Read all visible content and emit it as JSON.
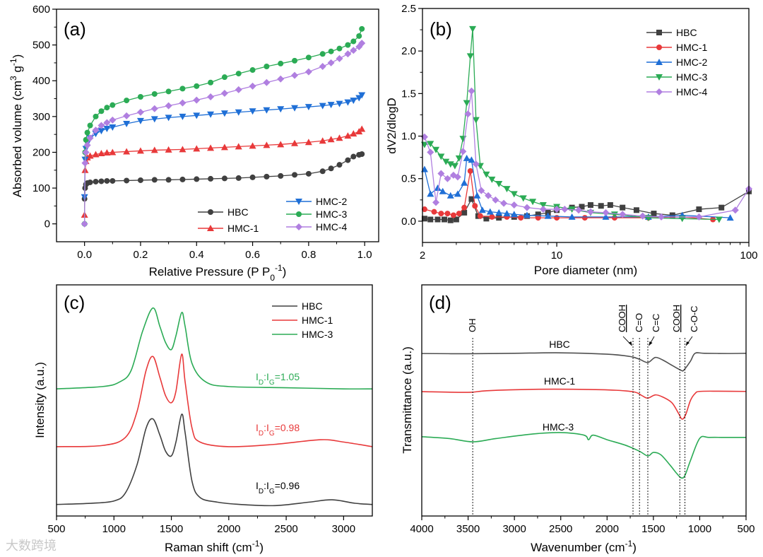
{
  "watermark": "大数跨境",
  "chart_data": [
    {
      "panel": "(a)",
      "type": "scatter",
      "xlabel_parts": [
        {
          "t": "Relative Pressure (P P"
        },
        {
          "t": "0",
          "s": "sub"
        },
        {
          "t": "-1",
          "s": "sup"
        },
        {
          "t": ")"
        }
      ],
      "ylabel_parts": [
        {
          "t": "Absorbed volume (cm"
        },
        {
          "t": "3",
          "s": "sup"
        },
        {
          "t": " g"
        },
        {
          "t": "-1",
          "s": "sup"
        },
        {
          "t": ")"
        }
      ],
      "xlim": [
        -0.1,
        1.05
      ],
      "ylim": [
        -50,
        600
      ],
      "xticks": [
        0,
        0.2,
        0.4,
        0.6,
        0.8,
        1.0
      ],
      "xtick_labels": [
        "0.0",
        "0.2",
        "0.4",
        "0.6",
        "0.8",
        "1.0"
      ],
      "yticks": [
        0,
        100,
        200,
        300,
        400,
        500,
        600
      ],
      "ytick_labels": [
        "0",
        "100",
        "200",
        "300",
        "400",
        "500",
        "600"
      ],
      "legend_position": "bottom-right",
      "x": [
        0,
        0.002,
        0.005,
        0.01,
        0.02,
        0.04,
        0.06,
        0.08,
        0.1,
        0.15,
        0.2,
        0.25,
        0.3,
        0.35,
        0.4,
        0.45,
        0.5,
        0.55,
        0.6,
        0.65,
        0.7,
        0.75,
        0.8,
        0.85,
        0.88,
        0.91,
        0.94,
        0.96,
        0.98,
        0.99
      ],
      "series": [
        {
          "name": "HBC",
          "color": "#404040",
          "marker": "circle",
          "values": [
            70,
            100,
            110,
            114,
            116,
            118,
            119,
            120,
            120,
            121,
            122,
            123,
            123,
            124,
            125,
            126,
            127,
            128,
            130,
            132,
            134,
            137,
            140,
            147,
            155,
            165,
            178,
            188,
            193,
            195
          ]
        },
        {
          "name": "HMC-1",
          "color": "#e8393a",
          "marker": "triangle-up",
          "values": [
            25,
            150,
            175,
            185,
            190,
            194,
            197,
            199,
            200,
            202,
            204,
            206,
            207,
            208,
            210,
            212,
            214,
            216,
            218,
            220,
            222,
            225,
            228,
            232,
            236,
            240,
            246,
            252,
            258,
            265
          ]
        },
        {
          "name": "HMC-2",
          "color": "#1f6fd6",
          "marker": "triangle-down",
          "values": [
            75,
            180,
            210,
            225,
            240,
            252,
            260,
            266,
            270,
            280,
            288,
            293,
            297,
            300,
            303,
            306,
            309,
            312,
            315,
            318,
            321,
            324,
            327,
            330,
            333,
            336,
            340,
            345,
            352,
            360
          ]
        },
        {
          "name": "HMC-3",
          "color": "#2bab55",
          "marker": "circle",
          "values": [
            0,
            200,
            235,
            255,
            275,
            300,
            315,
            325,
            332,
            345,
            355,
            363,
            370,
            378,
            385,
            395,
            410,
            420,
            430,
            440,
            448,
            456,
            465,
            475,
            482,
            490,
            500,
            510,
            525,
            545
          ]
        },
        {
          "name": "HMC-4",
          "color": "#b07fe0",
          "marker": "diamond",
          "values": [
            0,
            170,
            200,
            220,
            240,
            262,
            275,
            283,
            290,
            302,
            312,
            322,
            330,
            338,
            346,
            355,
            365,
            375,
            385,
            395,
            405,
            415,
            425,
            440,
            450,
            462,
            475,
            485,
            495,
            505
          ]
        }
      ]
    },
    {
      "panel": "(b)",
      "type": "line",
      "xscale": "log",
      "xlabel_parts": [
        {
          "t": "Pore diameter (nm)"
        }
      ],
      "ylabel_parts": [
        {
          "t": "dV2/dlogD"
        }
      ],
      "xlim": [
        2,
        100
      ],
      "ylim": [
        -0.25,
        2.5
      ],
      "xticks": [
        2,
        10,
        100
      ],
      "xtick_labels": [
        "2",
        "10",
        "100"
      ],
      "yticks": [
        0,
        0.5,
        1.0,
        1.5,
        2.0,
        2.5
      ],
      "ytick_labels": [
        "0.0",
        "0.5",
        "1.0",
        "1.5",
        "2.0",
        "2.5"
      ],
      "legend_position": "top-right",
      "series": [
        {
          "name": "HBC",
          "color": "#404040",
          "marker": "square",
          "x": [
            2.05,
            2.2,
            2.4,
            2.6,
            2.8,
            3.0,
            3.3,
            3.6,
            3.9,
            4.3,
            5,
            6,
            7,
            8,
            9,
            10,
            12,
            13.5,
            15,
            17,
            19,
            22,
            26,
            32,
            40,
            55,
            72,
            100
          ],
          "values": [
            0.03,
            0.02,
            0.02,
            0.02,
            0.01,
            0.02,
            0.1,
            0.26,
            0.06,
            0.03,
            0.04,
            0.05,
            0.06,
            0.08,
            0.1,
            0.13,
            0.16,
            0.17,
            0.19,
            0.18,
            0.19,
            0.16,
            0.13,
            0.09,
            0.07,
            0.14,
            0.16,
            0.35
          ]
        },
        {
          "name": "HMC-1",
          "color": "#e8393a",
          "marker": "circle",
          "x": [
            2.05,
            2.3,
            2.5,
            2.7,
            2.9,
            3.1,
            3.3,
            3.55,
            3.75,
            4.0,
            4.6,
            5.5,
            6.5,
            8,
            10,
            14,
            20,
            30,
            45,
            65
          ],
          "values": [
            0.14,
            0.11,
            0.09,
            0.09,
            0.07,
            0.09,
            0.16,
            0.59,
            0.18,
            0.06,
            0.05,
            0.05,
            0.04,
            0.04,
            0.04,
            0.04,
            0.04,
            0.04,
            0.05,
            0.02
          ]
        },
        {
          "name": "HMC-2",
          "color": "#1f6fd6",
          "marker": "triangle-up",
          "x": [
            2.05,
            2.2,
            2.4,
            2.55,
            2.8,
            3.05,
            3.3,
            3.4,
            3.6,
            3.85,
            4.1,
            4.5,
            5,
            5.5,
            6,
            7,
            9,
            12,
            18,
            30,
            45,
            80
          ],
          "values": [
            0.61,
            0.32,
            0.39,
            0.35,
            0.3,
            0.32,
            0.45,
            0.74,
            0.72,
            0.3,
            0.13,
            0.11,
            0.1,
            0.09,
            0.08,
            0.07,
            0.06,
            0.05,
            0.05,
            0.05,
            0.07,
            0.04
          ]
        },
        {
          "name": "HMC-3",
          "color": "#2bab55",
          "marker": "triangle-down",
          "x": [
            2.05,
            2.2,
            2.35,
            2.5,
            2.65,
            2.8,
            2.95,
            3.1,
            3.25,
            3.4,
            3.55,
            3.65,
            3.8,
            4.0,
            4.3,
            4.6,
            5,
            5.5,
            6,
            6.7,
            7.5,
            8.5,
            10,
            12,
            15,
            20,
            30,
            45,
            70
          ],
          "values": [
            0.9,
            0.91,
            0.84,
            0.76,
            0.7,
            0.67,
            0.65,
            0.74,
            0.97,
            1.39,
            1.94,
            2.26,
            1.19,
            0.65,
            0.55,
            0.49,
            0.44,
            0.38,
            0.32,
            0.27,
            0.23,
            0.19,
            0.17,
            0.14,
            0.1,
            0.08,
            0.04,
            0.03,
            0.02
          ]
        },
        {
          "name": "HMC-4",
          "color": "#b07fe0",
          "marker": "diamond",
          "x": [
            2.05,
            2.2,
            2.35,
            2.5,
            2.7,
            2.9,
            3.05,
            3.25,
            3.45,
            3.6,
            3.8,
            4.05,
            4.4,
            4.8,
            5.3,
            6,
            7,
            8.5,
            10,
            11,
            13,
            15,
            18,
            22,
            28,
            35,
            55,
            85,
            100
          ],
          "values": [
            0.99,
            0.81,
            0.22,
            0.56,
            0.5,
            0.54,
            0.52,
            0.82,
            1.26,
            1.53,
            0.67,
            0.36,
            0.3,
            0.25,
            0.21,
            0.19,
            0.16,
            0.14,
            0.14,
            0.14,
            0.13,
            0.11,
            0.1,
            0.08,
            0.06,
            0.05,
            0.05,
            0.13,
            0.38
          ]
        }
      ]
    },
    {
      "panel": "(c)",
      "type": "line",
      "xlabel_parts": [
        {
          "t": "Raman shift (cm"
        },
        {
          "t": "-1",
          "s": "sup"
        },
        {
          "t": ")"
        }
      ],
      "ylabel_parts": [
        {
          "t": "Intensity (a.u.)"
        }
      ],
      "xlim": [
        500,
        3250
      ],
      "ylim": [
        0,
        100
      ],
      "xticks": [
        500,
        1000,
        1500,
        2000,
        2500,
        3000
      ],
      "xtick_labels": [
        "500",
        "1000",
        "1500",
        "2000",
        "2500",
        "3000"
      ],
      "legend_position": "top-right",
      "series": [
        {
          "name": "HBC",
          "color": "#404040",
          "x": [
            500,
            800,
            1000,
            1100,
            1200,
            1280,
            1340,
            1400,
            1450,
            1500,
            1540,
            1590,
            1620,
            1680,
            1750,
            1900,
            2100,
            2400,
            2700,
            2900,
            3100,
            3250
          ],
          "values": [
            5,
            5.5,
            6.5,
            10,
            22,
            38,
            42,
            35,
            28,
            26,
            32,
            44,
            36,
            15,
            8,
            6,
            5,
            4.5,
            6,
            7,
            5.5,
            5
          ]
        },
        {
          "name": "HMC-1",
          "color": "#e8393a",
          "x": [
            500,
            900,
            1100,
            1200,
            1280,
            1340,
            1400,
            1450,
            1500,
            1540,
            1590,
            1620,
            1680,
            1750,
            2000,
            2400,
            2800,
            3000,
            3250
          ],
          "values": [
            30,
            30.5,
            34,
            45,
            63,
            69,
            60,
            52,
            49,
            54,
            70,
            58,
            38,
            32,
            30,
            31,
            33,
            32,
            30
          ]
        },
        {
          "name": "HMC-3",
          "color": "#2bab55",
          "x": [
            500,
            900,
            1050,
            1150,
            1250,
            1340,
            1400,
            1450,
            1500,
            1540,
            1590,
            1620,
            1680,
            1800,
            2000,
            2500,
            3000,
            3250
          ],
          "values": [
            55,
            56,
            58,
            63,
            80,
            90,
            82,
            75,
            72,
            78,
            88,
            82,
            66,
            58,
            56,
            55.5,
            55,
            55
          ]
        }
      ],
      "annotations": [
        {
          "series": "HMC-3",
          "color": "#2bab55",
          "parts": [
            {
              "t": "I"
            },
            {
              "t": "D",
              "s": "sub"
            },
            {
              "t": ":I"
            },
            {
              "t": "G",
              "s": "sub"
            },
            {
              "t": "=1.05"
            }
          ]
        },
        {
          "series": "HMC-1",
          "color": "#e8393a",
          "parts": [
            {
              "t": "I"
            },
            {
              "t": "D",
              "s": "sub"
            },
            {
              "t": ":I"
            },
            {
              "t": "G",
              "s": "sub"
            },
            {
              "t": "=0.98"
            }
          ]
        },
        {
          "series": "HBC",
          "color": "#000000",
          "parts": [
            {
              "t": "I"
            },
            {
              "t": "D",
              "s": "sub"
            },
            {
              "t": ":I"
            },
            {
              "t": "G",
              "s": "sub"
            },
            {
              "t": "=0.96"
            }
          ]
        }
      ]
    },
    {
      "panel": "(d)",
      "type": "line",
      "xlabel_parts": [
        {
          "t": "Wavenumber (cm"
        },
        {
          "t": "-1",
          "s": "sup"
        },
        {
          "t": ")"
        }
      ],
      "ylabel_parts": [
        {
          "t": "Transmittance (a.u.)"
        }
      ],
      "xlim": [
        4000,
        500
      ],
      "ylim": [
        0,
        100
      ],
      "xticks": [
        4000,
        3500,
        3000,
        2500,
        2000,
        1500,
        1000,
        500
      ],
      "xtick_labels": [
        "4000",
        "3500",
        "3000",
        "2500",
        "2000",
        "1500",
        "1000",
        "500"
      ],
      "series": [
        {
          "name": "HBC",
          "color": "#505050",
          "x": [
            4000,
            3500,
            3000,
            2500,
            2000,
            1750,
            1650,
            1560,
            1480,
            1400,
            1300,
            1200,
            1170,
            1100,
            1050,
            950,
            700,
            500
          ],
          "values": [
            70.3,
            70.2,
            70.4,
            70.6,
            70.0,
            69.0,
            67.8,
            66.4,
            68.6,
            67.5,
            65.2,
            63.0,
            63.2,
            67.0,
            70.4,
            70.4,
            70.3,
            70.4
          ]
        },
        {
          "name": "HMC-1",
          "color": "#e8393a",
          "x": [
            4000,
            3500,
            3300,
            2800,
            2300,
            1900,
            1700,
            1620,
            1560,
            1480,
            1400,
            1300,
            1230,
            1190,
            1150,
            1100,
            1050,
            1000,
            800,
            500
          ],
          "values": [
            53.8,
            53.5,
            54.2,
            54.8,
            54.8,
            54.4,
            53.6,
            52.0,
            51.0,
            52.4,
            51.5,
            49.0,
            44.5,
            41.9,
            44.0,
            50.0,
            53.0,
            53.9,
            54.0,
            53.9
          ]
        },
        {
          "name": "HMC-3",
          "color": "#2bab55",
          "x": [
            4000,
            3700,
            3450,
            3200,
            2800,
            2500,
            2250,
            2200,
            2150,
            2000,
            1800,
            1650,
            1560,
            1500,
            1420,
            1320,
            1250,
            1200,
            1160,
            1100,
            1000,
            900,
            700,
            500
          ],
          "values": [
            34.3,
            33.5,
            32.1,
            33.5,
            35.5,
            36.1,
            35.0,
            33.0,
            35.0,
            33.0,
            30.6,
            28.0,
            26.0,
            27.5,
            26.5,
            22.0,
            18.5,
            16.5,
            17.5,
            24.0,
            33.6,
            34.0,
            34.0,
            34.0
          ]
        }
      ],
      "peak_labels": [
        {
          "label": "OH",
          "wavenumber": 3450
        },
        {
          "label": "COOH",
          "wavenumber": 1720,
          "underline": true,
          "arrow": true
        },
        {
          "label": "C=O",
          "wavenumber": 1650
        },
        {
          "label": "C=C",
          "wavenumber": 1560,
          "arrow": true
        },
        {
          "label": "COOH",
          "wavenumber": 1215,
          "underline": true
        },
        {
          "label": "C-O-C",
          "wavenumber": 1160,
          "arrow": true
        }
      ]
    }
  ]
}
